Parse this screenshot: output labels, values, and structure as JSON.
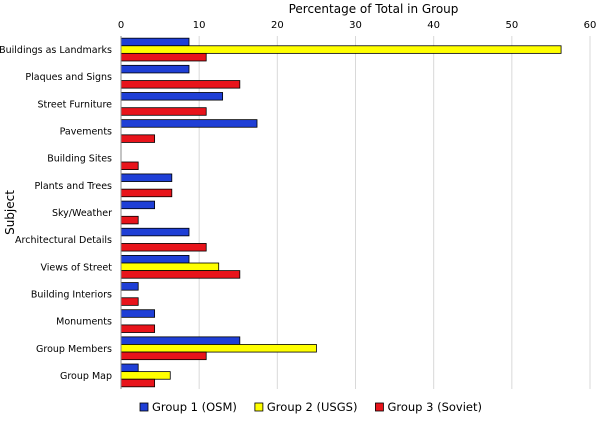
{
  "chart_data": {
    "type": "bar",
    "orientation": "horizontal",
    "xlabel": "Percentage of Total in Group",
    "ylabel": "Subject",
    "xlim": [
      0,
      60
    ],
    "xticks": [
      0,
      10,
      20,
      30,
      40,
      50,
      60
    ],
    "x_axis_position": "top",
    "grid": true,
    "legend_position": "bottom",
    "categories": [
      "Buildings as Landmarks",
      "Plaques and Signs",
      "Street Furniture",
      "Pavements",
      "Building Sites",
      "Plants and Trees",
      "Sky/Weather",
      "Architectural Details",
      "Views of Street",
      "Building Interiors",
      "Monuments",
      "Group Members",
      "Group Map"
    ],
    "series": [
      {
        "name": "Group 1 (OSM)",
        "color": "#1f3fd6",
        "values": [
          8.7,
          8.7,
          13.0,
          17.4,
          0,
          6.5,
          4.3,
          8.7,
          8.7,
          2.2,
          4.3,
          15.2,
          2.2
        ]
      },
      {
        "name": "Group 2 (USGS)",
        "color": "#ffff00",
        "values": [
          56.3,
          0,
          0,
          0,
          0,
          0,
          0,
          0,
          12.5,
          0,
          0,
          25.0,
          6.3
        ]
      },
      {
        "name": "Group 3 (Soviet)",
        "color": "#e8141b",
        "values": [
          10.9,
          15.2,
          10.9,
          4.3,
          2.2,
          6.5,
          2.2,
          10.9,
          15.2,
          2.2,
          4.3,
          10.9,
          4.3
        ]
      }
    ]
  }
}
